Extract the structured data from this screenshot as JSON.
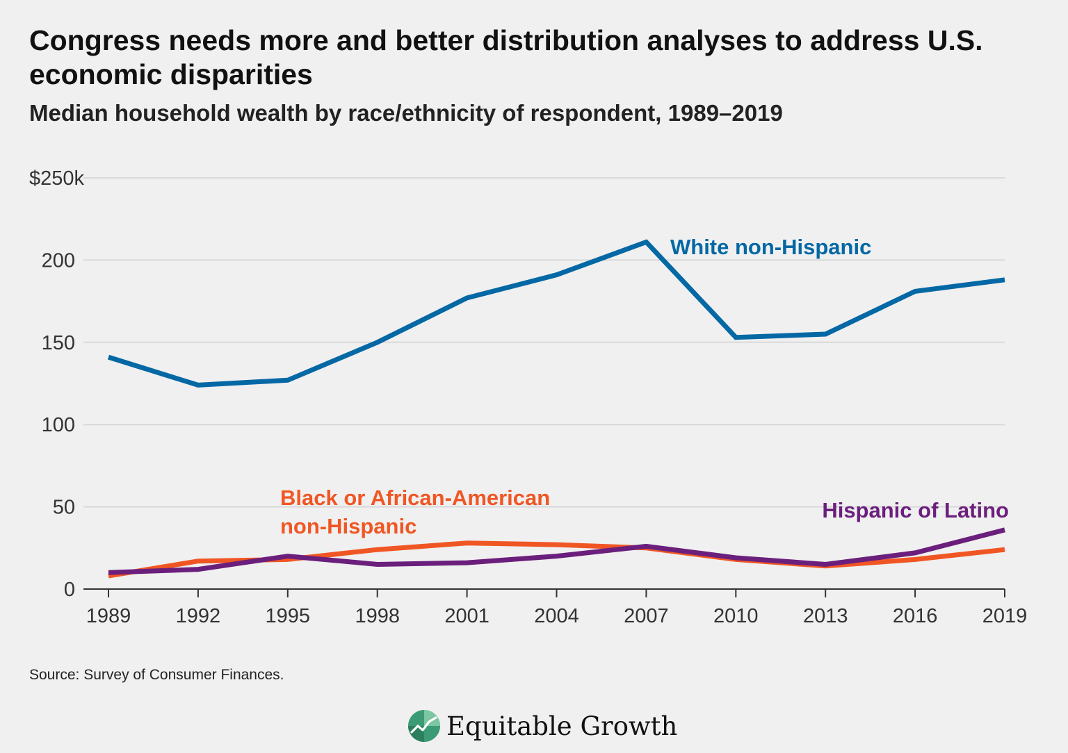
{
  "title": "Congress needs more and better distribution analyses to address U.S. economic disparities",
  "subtitle": "Median household wealth by race/ethnicity of respondent, 1989–2019",
  "source": "Source: Survey of Consumer Finances.",
  "logo": {
    "text": "Equitable Growth",
    "icon": "equitable-growth-logo-icon"
  },
  "colors": {
    "white": "#0468a5",
    "black": "#f05624",
    "hispanic": "#6b1f7c",
    "grid": "#d9d9d9",
    "axis": "#333333"
  },
  "chart_data": {
    "type": "line",
    "title": "Median household wealth by race/ethnicity of respondent, 1989–2019",
    "xlabel": "",
    "ylabel": "",
    "x": [
      1989,
      1992,
      1995,
      1998,
      2001,
      2004,
      2007,
      2010,
      2013,
      2016,
      2019
    ],
    "x_tick_labels": [
      "1989",
      "1992",
      "1995",
      "1998",
      "2001",
      "2004",
      "2007",
      "2010",
      "2013",
      "2016",
      "2019"
    ],
    "ylim": [
      0,
      250
    ],
    "y_ticks": [
      0,
      50,
      100,
      150,
      200,
      250
    ],
    "y_tick_labels": [
      "0",
      "50",
      "100",
      "150",
      "200",
      "$250k"
    ],
    "grid": true,
    "series": [
      {
        "key": "white",
        "name": "White non-Hispanic",
        "label_lines": [
          "White non-Hispanic"
        ],
        "values": [
          141,
          124,
          127,
          150,
          177,
          191,
          211,
          153,
          155,
          181,
          188
        ]
      },
      {
        "key": "black",
        "name": "Black or African-American non-Hispanic",
        "label_lines": [
          "Black or African-American",
          "non-Hispanic"
        ],
        "values": [
          8,
          17,
          18,
          24,
          28,
          27,
          25,
          18,
          14,
          18,
          24
        ]
      },
      {
        "key": "hispanic",
        "name": "Hispanic of Latino",
        "label_lines": [
          "Hispanic of Latino"
        ],
        "values": [
          10,
          12,
          20,
          15,
          16,
          20,
          26,
          19,
          15,
          22,
          36
        ]
      }
    ]
  }
}
